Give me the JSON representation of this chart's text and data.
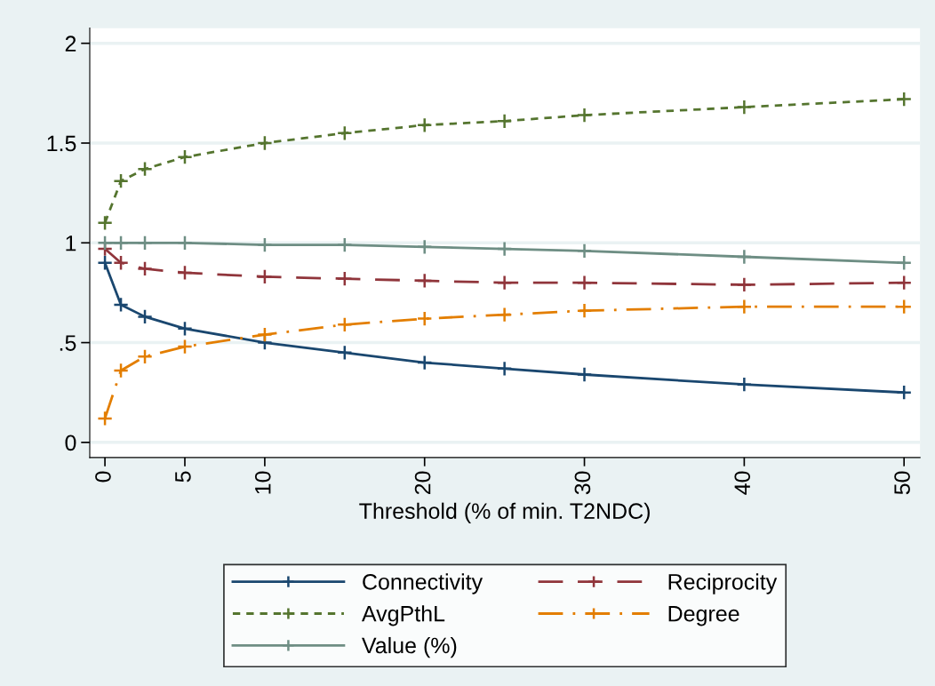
{
  "chart_data": {
    "type": "line",
    "xlabel": "Threshold (% of min. T2NDC)",
    "x": [
      0,
      1,
      2.5,
      5,
      10,
      15,
      20,
      25,
      30,
      40,
      50
    ],
    "series": [
      {
        "name": "Connectivity",
        "color": "#1a476f",
        "line_style": "solid",
        "values": [
          0.9,
          0.69,
          0.63,
          0.57,
          0.5,
          0.45,
          0.4,
          0.37,
          0.34,
          0.29,
          0.25
        ]
      },
      {
        "name": "Reciprocity",
        "color": "#90353b",
        "line_style": "dashed",
        "values": [
          0.97,
          0.9,
          0.87,
          0.85,
          0.83,
          0.82,
          0.81,
          0.8,
          0.8,
          0.79,
          0.8
        ]
      },
      {
        "name": "AvgPthL",
        "color": "#55752f",
        "line_style": "dotted",
        "values": [
          1.1,
          1.31,
          1.37,
          1.43,
          1.5,
          1.55,
          1.59,
          1.61,
          1.64,
          1.68,
          1.72
        ]
      },
      {
        "name": "Degree",
        "color": "#e37e00",
        "line_style": "dashdot",
        "values": [
          0.12,
          0.36,
          0.43,
          0.48,
          0.54,
          0.59,
          0.62,
          0.64,
          0.66,
          0.68,
          0.68
        ]
      },
      {
        "name": "Value (%)",
        "color": "#6e8e84",
        "line_style": "solid",
        "values": [
          1.0,
          1.0,
          1.0,
          1.0,
          0.99,
          0.99,
          0.98,
          0.97,
          0.96,
          0.93,
          0.9
        ]
      }
    ],
    "xlim": [
      -0.95,
      51
    ],
    "xticks": [
      0,
      5,
      10,
      20,
      30,
      40,
      50
    ],
    "ylim": [
      -0.076,
      2.076
    ],
    "yticks": [
      0,
      {
        "value": 0.5,
        "label": ".5"
      },
      1,
      1.5,
      2
    ],
    "marker": "cross",
    "grid": "y",
    "legend": "bottom"
  }
}
